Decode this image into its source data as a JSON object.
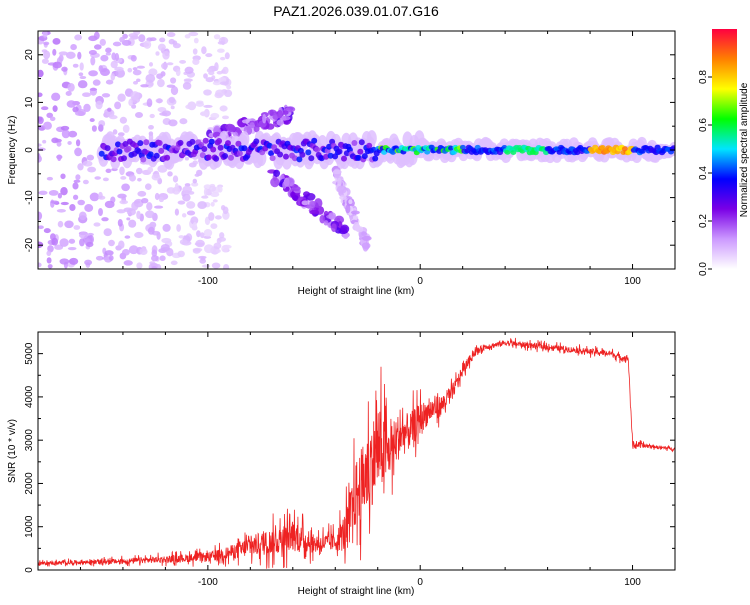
{
  "title": "PAZ1.2026.039.01.07.G16",
  "chart_data": [
    {
      "type": "heatmap",
      "xlabel": "Height of straight line (km)",
      "ylabel": "Frequency (Hz)",
      "xlim": [
        -180,
        120
      ],
      "ylim": [
        -25,
        25
      ],
      "xticks": [
        -100,
        0,
        100
      ],
      "xtick_labels": [
        "-100",
        "0",
        "100"
      ],
      "yticks": [
        -20,
        -10,
        0,
        10,
        20
      ],
      "ytick_labels": [
        "-20",
        "-10",
        "0",
        "10",
        "20"
      ],
      "colorbar": {
        "label": "Normalized spectral amplitude",
        "range": [
          0,
          1
        ],
        "ticks": [
          0.0,
          0.2,
          0.4,
          0.6,
          0.8
        ],
        "tick_labels": [
          "0.0",
          "0.2",
          "0.4",
          "0.6",
          "0.8"
        ],
        "colors": [
          "#ffffff",
          "#cc99ff",
          "#7a00e6",
          "#0000ff",
          "#00e5ff",
          "#00ff00",
          "#ffff00",
          "#ff8000",
          "#ff0040"
        ]
      },
      "features": {
        "main_band": {
          "x": [
            -150,
            120
          ],
          "freq": 0,
          "amplitude_range": [
            0.2,
            0.9
          ]
        },
        "noise_region": {
          "x": [
            -180,
            -90
          ],
          "freq": [
            -25,
            25
          ],
          "amplitude": 0.1
        },
        "upper_branch": {
          "x": [
            -100,
            -60
          ],
          "freq": [
            2,
            8
          ],
          "amplitude": 0.2
        },
        "lower_branch": {
          "x": [
            -70,
            -35
          ],
          "freq": [
            -5,
            -17
          ],
          "amplitude": 0.2
        },
        "lower_branch_2": {
          "x": [
            -40,
            -25
          ],
          "freq": [
            -5,
            -20
          ],
          "amplitude": 0.1
        },
        "strong_segments": [
          {
            "x": [
              40,
              60
            ],
            "amplitude": 0.6
          },
          {
            "x": [
              80,
              100
            ],
            "amplitude": 0.9
          }
        ]
      }
    },
    {
      "type": "line",
      "xlabel": "Height of straight line (km)",
      "ylabel": "SNR (10 * v/v)",
      "xlim": [
        -180,
        120
      ],
      "ylim": [
        0,
        5500
      ],
      "xticks": [
        -100,
        0,
        100
      ],
      "xtick_labels": [
        "-100",
        "0",
        "100"
      ],
      "yticks": [
        0,
        1000,
        2000,
        3000,
        4000,
        5000
      ],
      "ytick_labels": [
        "0",
        "1000",
        "2000",
        "3000",
        "4000",
        "5000"
      ],
      "color": "#ee2222",
      "x": [
        -180,
        -160,
        -140,
        -120,
        -100,
        -90,
        -80,
        -70,
        -60,
        -50,
        -40,
        -35,
        -30,
        -25,
        -20,
        -15,
        -10,
        -5,
        0,
        5,
        10,
        15,
        20,
        25,
        30,
        40,
        50,
        60,
        70,
        80,
        90,
        95,
        98,
        100,
        110,
        120
      ],
      "y": [
        150,
        180,
        200,
        250,
        300,
        400,
        550,
        650,
        800,
        600,
        650,
        900,
        1800,
        2200,
        2800,
        2700,
        3100,
        3200,
        3500,
        3700,
        3800,
        4100,
        4600,
        5000,
        5150,
        5250,
        5200,
        5150,
        5100,
        5050,
        5000,
        4900,
        4900,
        2900,
        2850,
        2800
      ],
      "spread": [
        60,
        80,
        100,
        130,
        180,
        250,
        400,
        500,
        600,
        350,
        350,
        800,
        1300,
        1500,
        1800,
        1000,
        900,
        700,
        600,
        450,
        400,
        300,
        200,
        150,
        110,
        110,
        110,
        110,
        110,
        110,
        110,
        110,
        120,
        120,
        60,
        50
      ]
    }
  ]
}
